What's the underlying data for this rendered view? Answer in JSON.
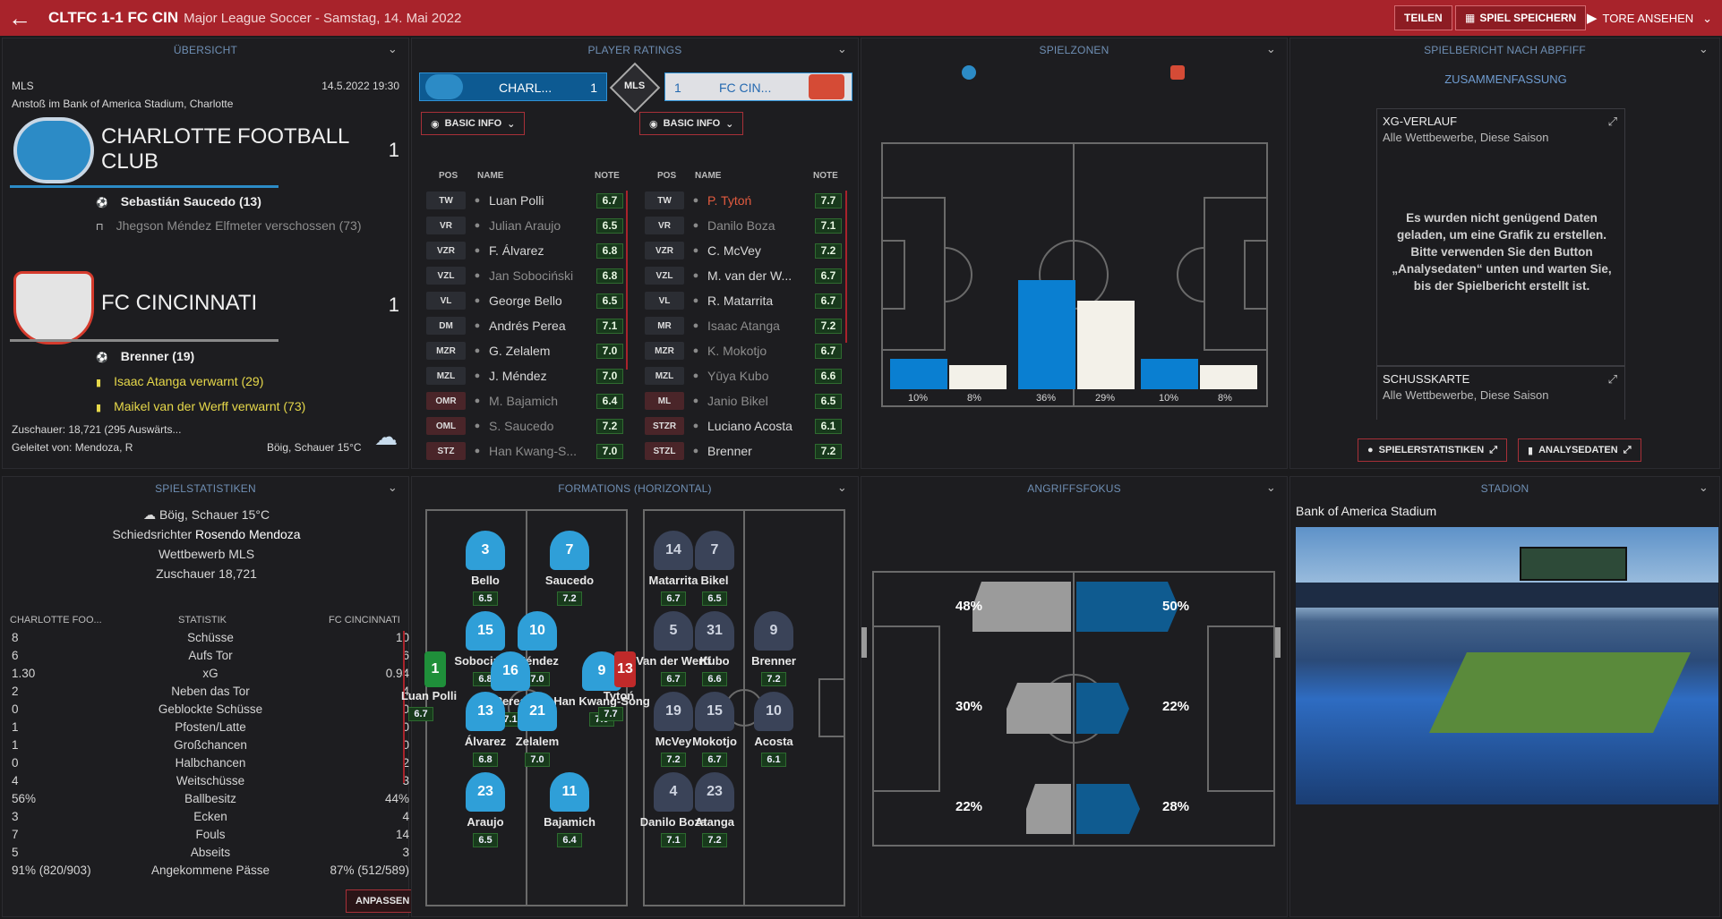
{
  "topbar": {
    "back": "←",
    "score": "CLTFC 1-1 FC CIN",
    "subtitle": "Major League Soccer - Samstag, 14. Mai 2022",
    "share": "TEILEN",
    "save": "SPIEL SPEICHERN",
    "goals": "TORE ANSEHEN",
    "chev": "⌄"
  },
  "overview": {
    "title": "ÜBERSICHT",
    "league": "MLS",
    "datetime": "14.5.2022 19:30",
    "venue": "Anstoß im Bank of America Stadium, Charlotte",
    "home": {
      "name": "CHARLOTTE FOOTBALL CLUB",
      "score": "1",
      "events": [
        {
          "icon": "⚽",
          "text": "Sebastián Saucedo (13)"
        },
        {
          "icon": "⊓",
          "text": "Jhegson Méndez Elfmeter verschossen (73)"
        }
      ]
    },
    "away": {
      "name": "FC CINCINNATI",
      "score": "1",
      "events": [
        {
          "icon": "⚽",
          "text": "Brenner (19)"
        },
        {
          "icon": "▮",
          "text": "Isaac Atanga verwarnt (29)"
        },
        {
          "icon": "▮",
          "text": "Maikel van der Werff verwarnt (73)"
        }
      ]
    },
    "attendance": "Zuschauer: 18,721 (295 Auswärts...",
    "referee": "Geleitet von: Mendoza, R",
    "weather": "Böig, Schauer 15°C"
  },
  "ratings": {
    "title": "PLAYER RATINGS",
    "home_short": "CHARL...",
    "home_score": "1",
    "away_short": "FC CIN...",
    "away_score": "1",
    "mls": "MLS",
    "basic": "BASIC INFO",
    "cols": {
      "pos": "POS",
      "name": "NAME",
      "note": "NOTE"
    },
    "home": [
      {
        "pos": "TW",
        "name": "Luan Polli",
        "r": "6.7",
        "dim": false
      },
      {
        "pos": "VR",
        "name": "Julian Araujo",
        "r": "6.5",
        "dim": true
      },
      {
        "pos": "VZR",
        "name": "F. Álvarez",
        "r": "6.8",
        "dim": false
      },
      {
        "pos": "VZL",
        "name": "Jan Sobociński",
        "r": "6.8",
        "dim": true
      },
      {
        "pos": "VL",
        "name": "George Bello",
        "r": "6.5",
        "dim": false
      },
      {
        "pos": "DM",
        "name": "Andrés Perea",
        "r": "7.1",
        "dim": false
      },
      {
        "pos": "MZR",
        "name": "G. Zelalem",
        "r": "7.0",
        "dim": false
      },
      {
        "pos": "MZL",
        "name": "J. Méndez",
        "r": "7.0",
        "dim": false
      },
      {
        "pos": "OMR",
        "name": "M. Bajamich",
        "r": "6.4",
        "dim": true
      },
      {
        "pos": "OML",
        "name": "S. Saucedo",
        "r": "7.2",
        "dim": true
      },
      {
        "pos": "STZ",
        "name": "Han Kwang-S...",
        "r": "7.0",
        "dim": true
      }
    ],
    "away": [
      {
        "pos": "TW",
        "name": "P. Tytoń",
        "r": "7.7",
        "dim": false
      },
      {
        "pos": "VR",
        "name": "Danilo Boza",
        "r": "7.1",
        "dim": true
      },
      {
        "pos": "VZR",
        "name": "C. McVey",
        "r": "7.2",
        "dim": false
      },
      {
        "pos": "VZL",
        "name": "M. van der W...",
        "r": "6.7",
        "dim": false
      },
      {
        "pos": "VL",
        "name": "R. Matarrita",
        "r": "6.7",
        "dim": false
      },
      {
        "pos": "MR",
        "name": "Isaac Atanga",
        "r": "7.2",
        "dim": true
      },
      {
        "pos": "MZR",
        "name": "K. Mokotjo",
        "r": "6.7",
        "dim": true
      },
      {
        "pos": "MZL",
        "name": "Yūya Kubo",
        "r": "6.6",
        "dim": true
      },
      {
        "pos": "ML",
        "name": "Janio Bikel",
        "r": "6.5",
        "dim": true
      },
      {
        "pos": "STZR",
        "name": "Luciano Acosta",
        "r": "6.1",
        "dim": false
      },
      {
        "pos": "STZL",
        "name": "Brenner",
        "r": "7.2",
        "dim": false
      }
    ]
  },
  "zones": {
    "title": "SPIELZONEN",
    "bars": [
      {
        "home": "10%",
        "away": "8%",
        "h": 10,
        "a": 8
      },
      {
        "home": "36%",
        "away": "29%",
        "h": 36,
        "a": 29
      },
      {
        "home": "10%",
        "away": "8%",
        "h": 10,
        "a": 8
      }
    ]
  },
  "report": {
    "title": "SPIELBERICHT NACH ABPFIFF",
    "summary": "ZUSAMMENFASSUNG",
    "xg_title": "XG-VERLAUF",
    "xg_sub": "Alle Wettbewerbe, Diese Saison",
    "msg": "Es wurden nicht genügend Daten geladen, um eine Grafik zu erstellen. Bitte verwenden Sie den Button „Analysedaten“ unten und warten Sie, bis der Spielbericht erstellt ist.",
    "shot_title": "SCHUSSKARTE",
    "shot_sub": "Alle Wettbewerbe, Diese Saison",
    "btn_players": "SPIELERSTATISTIKEN",
    "btn_analysis": "ANALYSEDATEN"
  },
  "stats": {
    "title": "SPIELSTATISTIKEN",
    "weather": "Böig, Schauer 15°C",
    "ref_label": "Schiedsrichter",
    "ref": "Rosendo Mendoza",
    "comp": "Wettbewerb MLS",
    "att": "Zuschauer 18,721",
    "head_home": "CHARLOTTE FOO...",
    "head_stat": "STATISTIK",
    "head_away": "FC CINCINNATI",
    "rows": [
      {
        "h": "8",
        "l": "Schüsse",
        "a": "10"
      },
      {
        "h": "6",
        "l": "Aufs Tor",
        "a": "6"
      },
      {
        "h": "1.30",
        "l": "xG",
        "a": "0.94"
      },
      {
        "h": "2",
        "l": "Neben das Tor",
        "a": "4"
      },
      {
        "h": "0",
        "l": "Geblockte Schüsse",
        "a": "0"
      },
      {
        "h": "1",
        "l": "Pfosten/Latte",
        "a": "0"
      },
      {
        "h": "1",
        "l": "Großchancen",
        "a": "0"
      },
      {
        "h": "0",
        "l": "Halbchancen",
        "a": "2"
      },
      {
        "h": "4",
        "l": "Weitschüsse",
        "a": "3"
      },
      {
        "h": "56%",
        "l": "Ballbesitz",
        "a": "44%"
      },
      {
        "h": "3",
        "l": "Ecken",
        "a": "4"
      },
      {
        "h": "7",
        "l": "Fouls",
        "a": "14"
      },
      {
        "h": "5",
        "l": "Abseits",
        "a": "3"
      },
      {
        "h": "91% (820/903)",
        "l": "Angekommene Pässe",
        "a": "87% (512/589)"
      }
    ],
    "adjust": "ANPASSEN"
  },
  "formations": {
    "title": "FORMATIONS (HORIZONTAL)",
    "home": [
      {
        "num": "3",
        "name": "Bello",
        "r": "6.5"
      },
      {
        "num": "7",
        "name": "Saucedo",
        "r": "7.2"
      },
      {
        "num": "15",
        "name": "Sobociński",
        "r": "6.8"
      },
      {
        "num": "10",
        "name": "Méndez",
        "r": "7.0"
      },
      {
        "num": "16",
        "name": "Perea",
        "r": "7.1"
      },
      {
        "num": "9",
        "name": "Han Kwang-Song",
        "r": "7.0"
      },
      {
        "num": "13",
        "name": "Álvarez",
        "r": "6.8"
      },
      {
        "num": "21",
        "name": "Zelalem",
        "r": "7.0"
      },
      {
        "num": "23",
        "name": "Araujo",
        "r": "6.5"
      },
      {
        "num": "11",
        "name": "Bajamich",
        "r": "6.4"
      },
      {
        "num": "1",
        "name": "Luan Polli",
        "r": "6.7"
      }
    ],
    "away": [
      {
        "num": "14",
        "name": "Matarrita",
        "r": "6.7"
      },
      {
        "num": "7",
        "name": "Bikel",
        "r": "6.5"
      },
      {
        "num": "5",
        "name": "Van der Werff",
        "r": "6.7"
      },
      {
        "num": "31",
        "name": "Kubo",
        "r": "6.6"
      },
      {
        "num": "9",
        "name": "Brenner",
        "r": "7.2"
      },
      {
        "num": "19",
        "name": "McVey",
        "r": "7.2"
      },
      {
        "num": "15",
        "name": "Mokotjo",
        "r": "6.7"
      },
      {
        "num": "10",
        "name": "Acosta",
        "r": "6.1"
      },
      {
        "num": "4",
        "name": "Danilo Boza",
        "r": "7.1"
      },
      {
        "num": "23",
        "name": "Atanga",
        "r": "7.2"
      },
      {
        "num": "13",
        "name": "Tytoń",
        "r": "7.7"
      }
    ]
  },
  "attack": {
    "title": "ANGRIFFSFOKUS",
    "home": [
      "48%",
      "30%",
      "22%"
    ],
    "away": [
      "50%",
      "22%",
      "28%"
    ]
  },
  "stadium": {
    "title": "STADION",
    "name": "Bank of America Stadium"
  },
  "colors": {
    "accent": "#a8232b",
    "home": "#0a7fd1",
    "away": "#f3f1e9"
  }
}
